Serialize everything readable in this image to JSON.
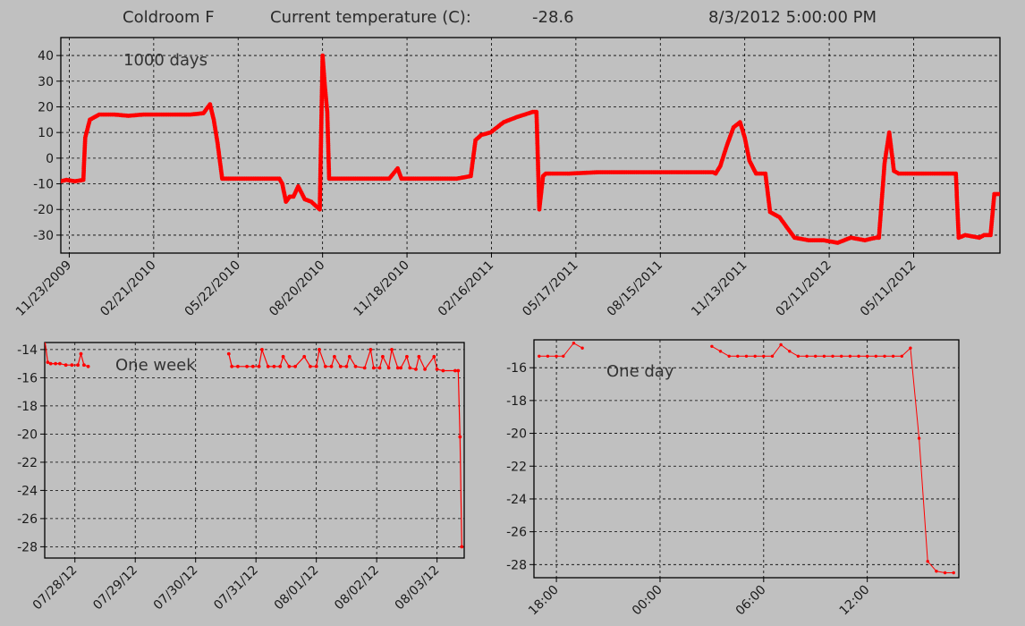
{
  "header": {
    "room": "Coldroom F",
    "current_label": "Current temperature (C):",
    "current_value": "-28.6",
    "timestamp": "8/3/2012 5:00:00 PM"
  },
  "colors": {
    "series": "#ff0000",
    "plot_bg": "#c0c0c0",
    "grid": "#000000"
  },
  "chart_data": [
    {
      "type": "line",
      "title": "1000 days",
      "grid": true,
      "ylim": [
        -37,
        47
      ],
      "yticks": [
        -30,
        -20,
        -10,
        0,
        10,
        20,
        30,
        40
      ],
      "xlim": [
        "2009-11-14",
        "2012-08-11"
      ],
      "xticks": [
        "11/23/2009",
        "02/21/2010",
        "05/22/2010",
        "08/20/2010",
        "11/18/2010",
        "02/16/2011",
        "05/17/2011",
        "08/15/2011",
        "11/13/2011",
        "02/11/2012",
        "05/11/2012"
      ],
      "series": [
        {
          "x": [
            "2009-11-14",
            "2009-11-20",
            "2009-11-29",
            "2009-12-08",
            "2009-12-10",
            "2009-12-15",
            "2009-12-25",
            "2010-01-10",
            "2010-01-25",
            "2010-02-10",
            "2010-02-25",
            "2010-03-15",
            "2010-04-01",
            "2010-04-15",
            "2010-04-22",
            "2010-04-26",
            "2010-04-30",
            "2010-05-05",
            "2010-05-10",
            "2010-05-25",
            "2010-06-15",
            "2010-07-05",
            "2010-07-08",
            "2010-07-12",
            "2010-07-16",
            "2010-07-20",
            "2010-07-25",
            "2010-08-01",
            "2010-08-08",
            "2010-08-14",
            "2010-08-17",
            "2010-08-20",
            "2010-08-22",
            "2010-08-25",
            "2010-08-27",
            "2010-09-01",
            "2010-09-20",
            "2010-10-10",
            "2010-10-30",
            "2010-11-08",
            "2010-11-12",
            "2010-11-18",
            "2010-11-25",
            "2010-12-05",
            "2010-12-20",
            "2011-01-10",
            "2011-01-25",
            "2011-01-30",
            "2011-02-02",
            "2011-02-05",
            "2011-02-15",
            "2011-03-01",
            "2011-03-15",
            "2011-04-01",
            "2011-04-05",
            "2011-04-08",
            "2011-04-12",
            "2011-04-15",
            "2011-04-20",
            "2011-05-10",
            "2011-06-10",
            "2011-07-10",
            "2011-08-10",
            "2011-09-10",
            "2011-10-10",
            "2011-10-13",
            "2011-10-18",
            "2011-10-25",
            "2011-11-01",
            "2011-11-08",
            "2011-11-13",
            "2011-11-18",
            "2011-11-25",
            "2011-12-05",
            "2011-12-10",
            "2011-12-20",
            "2012-01-05",
            "2012-01-20",
            "2012-02-05",
            "2012-02-20",
            "2012-03-05",
            "2012-03-20",
            "2012-04-01",
            "2012-04-04",
            "2012-04-10",
            "2012-04-15",
            "2012-04-20",
            "2012-04-25",
            "2012-05-10",
            "2012-05-25",
            "2012-06-10",
            "2012-06-25",
            "2012-06-28",
            "2012-07-05",
            "2012-07-20",
            "2012-07-25",
            "2012-08-01",
            "2012-08-05",
            "2012-08-11"
          ],
          "values": [
            -9,
            -8.5,
            -9,
            -8.5,
            8,
            15,
            17,
            17,
            16.5,
            17,
            17,
            17,
            17,
            17.5,
            21,
            15,
            6,
            -8,
            -8,
            -8,
            -8,
            -8,
            -10,
            -17,
            -15,
            -15,
            -11,
            -16,
            -17,
            -19,
            -20,
            40,
            30,
            18,
            -8,
            -8,
            -8,
            -8,
            -8,
            -4,
            -8,
            -8,
            -8,
            -8,
            -8,
            -8,
            -7,
            7,
            8,
            9,
            10,
            14,
            16,
            18,
            18,
            -20,
            -7,
            -6,
            -6,
            -6,
            -5.5,
            -5.5,
            -5.5,
            -5.5,
            -5.5,
            -6,
            -3,
            5,
            12,
            14,
            8,
            -1,
            -6,
            -6,
            -21,
            -23,
            -31,
            -32,
            -32,
            -33,
            -31,
            -32,
            -31,
            -31,
            -2,
            10,
            -5,
            -6,
            -6,
            -6,
            -6,
            -6,
            -31,
            -30,
            -31,
            -30,
            -30,
            -14,
            -14
          ]
        }
      ]
    },
    {
      "type": "line",
      "title": "One week",
      "grid": true,
      "ylim": [
        -28.8,
        -13.5
      ],
      "yticks": [
        -28,
        -26,
        -24,
        -22,
        -20,
        -18,
        -16,
        -14
      ],
      "xlim": [
        0,
        6.95
      ],
      "xticks": [
        "07/28/12",
        "07/29/12",
        "07/30/12",
        "07/31/12",
        "08/01/12",
        "08/02/12",
        "08/03/12"
      ],
      "xtick_pos": [
        0.5,
        1.5,
        2.5,
        3.5,
        4.5,
        5.5,
        6.5
      ],
      "series": [
        {
          "segments": [
            {
              "x": [
                0.0,
                0.05,
                0.1,
                0.18,
                0.25,
                0.35,
                0.45,
                0.55,
                0.6,
                0.65,
                0.72
              ],
              "values": [
                -13.3,
                -14.9,
                -15.0,
                -15.0,
                -15.0,
                -15.1,
                -15.1,
                -15.1,
                -14.3,
                -15.1,
                -15.2
              ]
            },
            {
              "x": [
                3.05,
                3.1,
                3.2,
                3.35,
                3.45,
                3.55,
                3.6,
                3.7,
                3.8,
                3.9,
                3.95,
                4.05,
                4.15,
                4.3,
                4.4,
                4.5,
                4.55,
                4.65,
                4.75,
                4.8,
                4.9,
                5.0,
                5.05,
                5.15,
                5.3,
                5.4,
                5.45,
                5.55,
                5.6,
                5.7,
                5.75,
                5.85,
                5.9,
                6.0,
                6.05,
                6.15,
                6.2,
                6.3,
                6.45,
                6.5,
                6.6,
                6.8,
                6.85,
                6.88,
                6.91
              ],
              "values": [
                -14.3,
                -15.2,
                -15.2,
                -15.2,
                -15.2,
                -15.2,
                -14.0,
                -15.2,
                -15.2,
                -15.2,
                -14.5,
                -15.2,
                -15.2,
                -14.5,
                -15.2,
                -15.2,
                -14.0,
                -15.2,
                -15.2,
                -14.5,
                -15.2,
                -15.2,
                -14.5,
                -15.2,
                -15.3,
                -14.0,
                -15.3,
                -15.3,
                -14.5,
                -15.3,
                -14.0,
                -15.3,
                -15.3,
                -14.5,
                -15.3,
                -15.4,
                -14.5,
                -15.4,
                -14.5,
                -15.4,
                -15.5,
                -15.5,
                -15.5,
                -20.2,
                -28.0
              ]
            }
          ]
        }
      ]
    },
    {
      "type": "line",
      "title": "One day",
      "grid": true,
      "ylim": [
        -28.8,
        -14.3
      ],
      "yticks": [
        -28,
        -26,
        -24,
        -22,
        -20,
        -18,
        -16
      ],
      "xlim": [
        -7.3,
        17.3
      ],
      "xticks": [
        "18:00",
        "00:00",
        "06:00",
        "12:00"
      ],
      "xtick_pos": [
        -6,
        0,
        6,
        12
      ],
      "series": [
        {
          "segments": [
            {
              "x": [
                -7,
                -6.5,
                -6,
                -5.6,
                -5,
                -4.5
              ],
              "values": [
                -15.3,
                -15.3,
                -15.3,
                -15.3,
                -14.5,
                -14.8
              ]
            },
            {
              "x": [
                3,
                3.5,
                4,
                4.5,
                5,
                5.5,
                6,
                6.5,
                7,
                7.5,
                8,
                8.5,
                9,
                9.5,
                10,
                10.5,
                11,
                11.5,
                12,
                12.5,
                13,
                13.5,
                14,
                14.5,
                15,
                15.5,
                16,
                16.5,
                17
              ],
              "values": [
                -14.7,
                -15.0,
                -15.3,
                -15.3,
                -15.3,
                -15.3,
                -15.3,
                -15.3,
                -14.6,
                -15.0,
                -15.3,
                -15.3,
                -15.3,
                -15.3,
                -15.3,
                -15.3,
                -15.3,
                -15.3,
                -15.3,
                -15.3,
                -15.3,
                -15.3,
                -15.3,
                -14.8,
                -20.3,
                -27.8,
                -28.4,
                -28.5,
                -28.5
              ]
            }
          ]
        }
      ]
    }
  ]
}
